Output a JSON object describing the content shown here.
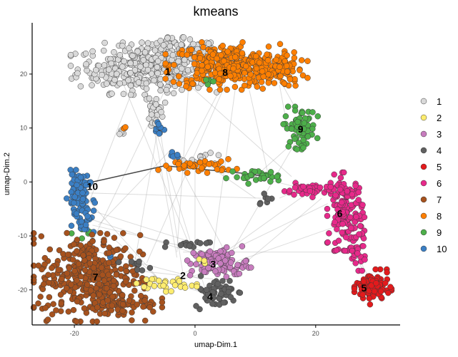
{
  "chart_data": {
    "type": "scatter",
    "title": "kmeans",
    "xlabel": "umap-Dim.1",
    "ylabel": "umap-Dim.2",
    "xlim": [
      -27,
      34
    ],
    "ylim": [
      -26.5,
      29.5
    ],
    "x_ticks": [
      -20,
      0,
      20
    ],
    "y_ticks": [
      20,
      10,
      0,
      -10,
      -20
    ],
    "x_tick_labels": [
      "-20",
      "0",
      "20"
    ],
    "y_tick_labels": [
      "20",
      "10",
      "0",
      "-10",
      "-20"
    ],
    "grid": false,
    "legend_position": "right",
    "legend": [
      {
        "label": "1",
        "color": "#d9d9d9"
      },
      {
        "label": "2",
        "color": "#ffed6f"
      },
      {
        "label": "3",
        "color": "#c77cbe"
      },
      {
        "label": "4",
        "color": "#606060"
      },
      {
        "label": "5",
        "color": "#e31a1c"
      },
      {
        "label": "6",
        "color": "#e7298a"
      },
      {
        "label": "7",
        "color": "#a6521e"
      },
      {
        "label": "8",
        "color": "#ff7f00"
      },
      {
        "label": "9",
        "color": "#4daf4a"
      },
      {
        "label": "10",
        "color": "#3b7fc4"
      }
    ],
    "cluster_labels": [
      {
        "text": "1",
        "x": -4.5,
        "y": 20.5
      },
      {
        "text": "2",
        "x": -2,
        "y": -17.3
      },
      {
        "text": "3",
        "x": 3,
        "y": -15.2
      },
      {
        "text": "4",
        "x": 2.5,
        "y": -21.2
      },
      {
        "text": "5",
        "x": 28,
        "y": -19.6
      },
      {
        "text": "6",
        "x": 24,
        "y": -5.8
      },
      {
        "text": "7",
        "x": -16.5,
        "y": -17.6
      },
      {
        "text": "8",
        "x": 5,
        "y": 20.3
      },
      {
        "text": "9",
        "x": 17.5,
        "y": 9.8
      },
      {
        "text": "10",
        "x": -17,
        "y": -0.8
      }
    ],
    "clusters": [
      {
        "id": "1",
        "color": "#d9d9d9",
        "regions": [
          {
            "cx": -8.5,
            "cy": 21,
            "sx": 5.5,
            "sy": 2.2,
            "n": 300
          },
          {
            "cx": -3,
            "cy": 23.5,
            "sx": 3.5,
            "sy": 1.5,
            "n": 150
          },
          {
            "cx": -6.5,
            "cy": 13.5,
            "sx": 0.7,
            "sy": 1.8,
            "n": 30
          },
          {
            "cx": 1.5,
            "cy": 4.3,
            "sx": 1.8,
            "sy": 0.5,
            "n": 14
          },
          {
            "cx": -12,
            "cy": 9.5,
            "sx": 0.3,
            "sy": 0.3,
            "n": 4
          }
        ]
      },
      {
        "id": "8",
        "color": "#ff7f00",
        "regions": [
          {
            "cx": 5,
            "cy": 21.5,
            "sx": 4.5,
            "sy": 2.0,
            "n": 280
          },
          {
            "cx": 12.5,
            "cy": 20.8,
            "sx": 2.8,
            "sy": 1.6,
            "n": 120
          },
          {
            "cx": 0.5,
            "cy": 3,
            "sx": 3,
            "sy": 0.6,
            "n": 40
          },
          {
            "cx": -11.5,
            "cy": 10,
            "sx": 0.3,
            "sy": 0.3,
            "n": 3
          }
        ]
      },
      {
        "id": "9",
        "color": "#4daf4a",
        "regions": [
          {
            "cx": 17.5,
            "cy": 10,
            "sx": 1.3,
            "sy": 1.8,
            "n": 70
          },
          {
            "cx": 10,
            "cy": 1,
            "sx": 2.2,
            "sy": 0.6,
            "n": 30
          },
          {
            "cx": 3,
            "cy": 18.5,
            "sx": 1.0,
            "sy": 0.3,
            "n": 6
          },
          {
            "cx": -18,
            "cy": -9.5,
            "sx": 1.5,
            "sy": 0.6,
            "n": 6
          }
        ]
      },
      {
        "id": "6",
        "color": "#e7298a",
        "regions": [
          {
            "cx": 25,
            "cy": -5.5,
            "sx": 1.4,
            "sy": 3.3,
            "n": 140
          },
          {
            "cx": 19.5,
            "cy": -1.5,
            "sx": 2.6,
            "sy": 0.6,
            "n": 45
          },
          {
            "cx": 26.8,
            "cy": -12.5,
            "sx": 0.8,
            "sy": 1.8,
            "n": 30
          }
        ]
      },
      {
        "id": "5",
        "color": "#e31a1c",
        "regions": [
          {
            "cx": 29.5,
            "cy": -19.5,
            "sx": 1.4,
            "sy": 1.5,
            "n": 95
          }
        ]
      },
      {
        "id": "10",
        "color": "#3b7fc4",
        "regions": [
          {
            "cx": -19.3,
            "cy": -1.5,
            "sx": 0.9,
            "sy": 1.7,
            "n": 55
          },
          {
            "cx": -18.5,
            "cy": -6,
            "sx": 0.9,
            "sy": 1.8,
            "n": 35
          },
          {
            "cx": -6,
            "cy": 10,
            "sx": 0.6,
            "sy": 0.7,
            "n": 12
          },
          {
            "cx": -3.5,
            "cy": 4.8,
            "sx": 0.5,
            "sy": 0.5,
            "n": 6
          },
          {
            "cx": -14,
            "cy": -13.5,
            "sx": 0.3,
            "sy": 0.3,
            "n": 3
          }
        ]
      },
      {
        "id": "7",
        "color": "#a6521e",
        "regions": [
          {
            "cx": -17.5,
            "cy": -17.5,
            "sx": 4.2,
            "sy": 3.8,
            "n": 360
          },
          {
            "cx": -12.5,
            "cy": -22.5,
            "sx": 3.2,
            "sy": 0.9,
            "n": 70
          }
        ]
      },
      {
        "id": "4",
        "color": "#606060",
        "regions": [
          {
            "cx": 3.5,
            "cy": -20.5,
            "sx": 1.8,
            "sy": 1.4,
            "n": 55
          },
          {
            "cx": -1,
            "cy": -11.5,
            "sx": 1.8,
            "sy": 0.4,
            "n": 15
          },
          {
            "cx": 11.5,
            "cy": -3,
            "sx": 0.7,
            "sy": 0.5,
            "n": 7
          },
          {
            "cx": -10,
            "cy": -15.5,
            "sx": 1.2,
            "sy": 0.4,
            "n": 9
          }
        ]
      },
      {
        "id": "3",
        "color": "#c77cbe",
        "regions": [
          {
            "cx": 4,
            "cy": -15,
            "sx": 2.4,
            "sy": 1.4,
            "n": 95
          }
        ]
      },
      {
        "id": "2",
        "color": "#ffed6f",
        "regions": [
          {
            "cx": -5.5,
            "cy": -19,
            "sx": 2.8,
            "sy": 0.6,
            "n": 26
          },
          {
            "cx": 1.5,
            "cy": -15,
            "sx": 0.4,
            "sy": 0.3,
            "n": 3
          }
        ]
      }
    ],
    "edges": [
      [
        -12,
        18.5,
        1,
        -17
      ],
      [
        -8,
        17.5,
        -3,
        -14
      ],
      [
        -6,
        11,
        -10,
        -15
      ],
      [
        -6,
        11,
        -2,
        -17
      ],
      [
        -4,
        6,
        -16,
        -8
      ],
      [
        -3,
        4,
        5,
        -13
      ],
      [
        0,
        4,
        0,
        -11
      ],
      [
        1,
        4,
        10,
        -3
      ],
      [
        -10,
        18,
        -18,
        -5
      ],
      [
        -5,
        17,
        -17,
        -11
      ],
      [
        5,
        18,
        -8,
        -15
      ],
      [
        14,
        18,
        15,
        12
      ],
      [
        17,
        8,
        5,
        -15
      ],
      [
        17,
        8,
        10,
        1
      ],
      [
        13,
        21,
        18,
        11
      ],
      [
        9,
        17,
        12,
        2
      ],
      [
        5,
        19,
        -2,
        4
      ],
      [
        -3,
        20,
        16,
        1
      ],
      [
        20,
        -1,
        5,
        -13
      ],
      [
        21,
        -3,
        3,
        -20
      ],
      [
        24,
        -8,
        1,
        -17
      ],
      [
        25,
        -9,
        28,
        -17
      ],
      [
        26,
        -12,
        30,
        -20
      ],
      [
        22,
        -4,
        -2,
        -17
      ],
      [
        -18,
        -3,
        -6,
        -18
      ],
      [
        -17,
        -7,
        2,
        -14
      ],
      [
        -18,
        -5,
        -1,
        -11
      ],
      [
        -13,
        -16,
        3,
        -18
      ],
      [
        -13,
        -16,
        3,
        -21
      ],
      [
        -16,
        -13,
        1,
        -18
      ],
      [
        -11,
        -21,
        1,
        -17
      ],
      [
        -17,
        -8,
        6,
        -14
      ],
      [
        10,
        1,
        17,
        -1
      ],
      [
        18,
        -1,
        14,
        -3
      ],
      [
        -19,
        -2,
        11,
        -3
      ],
      [
        -2,
        -13,
        26,
        -13
      ],
      [
        -8,
        15,
        2,
        -21
      ],
      [
        -1,
        19,
        -3,
        -13
      ],
      [
        7,
        20,
        3,
        -13
      ],
      [
        -15,
        -9,
        -6,
        -18
      ]
    ],
    "dark_edges": [
      [
        -19,
        -0.5,
        -5,
        3
      ],
      [
        -5,
        3,
        9,
        1.5
      ],
      [
        9,
        1.5,
        14,
        0.5
      ]
    ]
  }
}
